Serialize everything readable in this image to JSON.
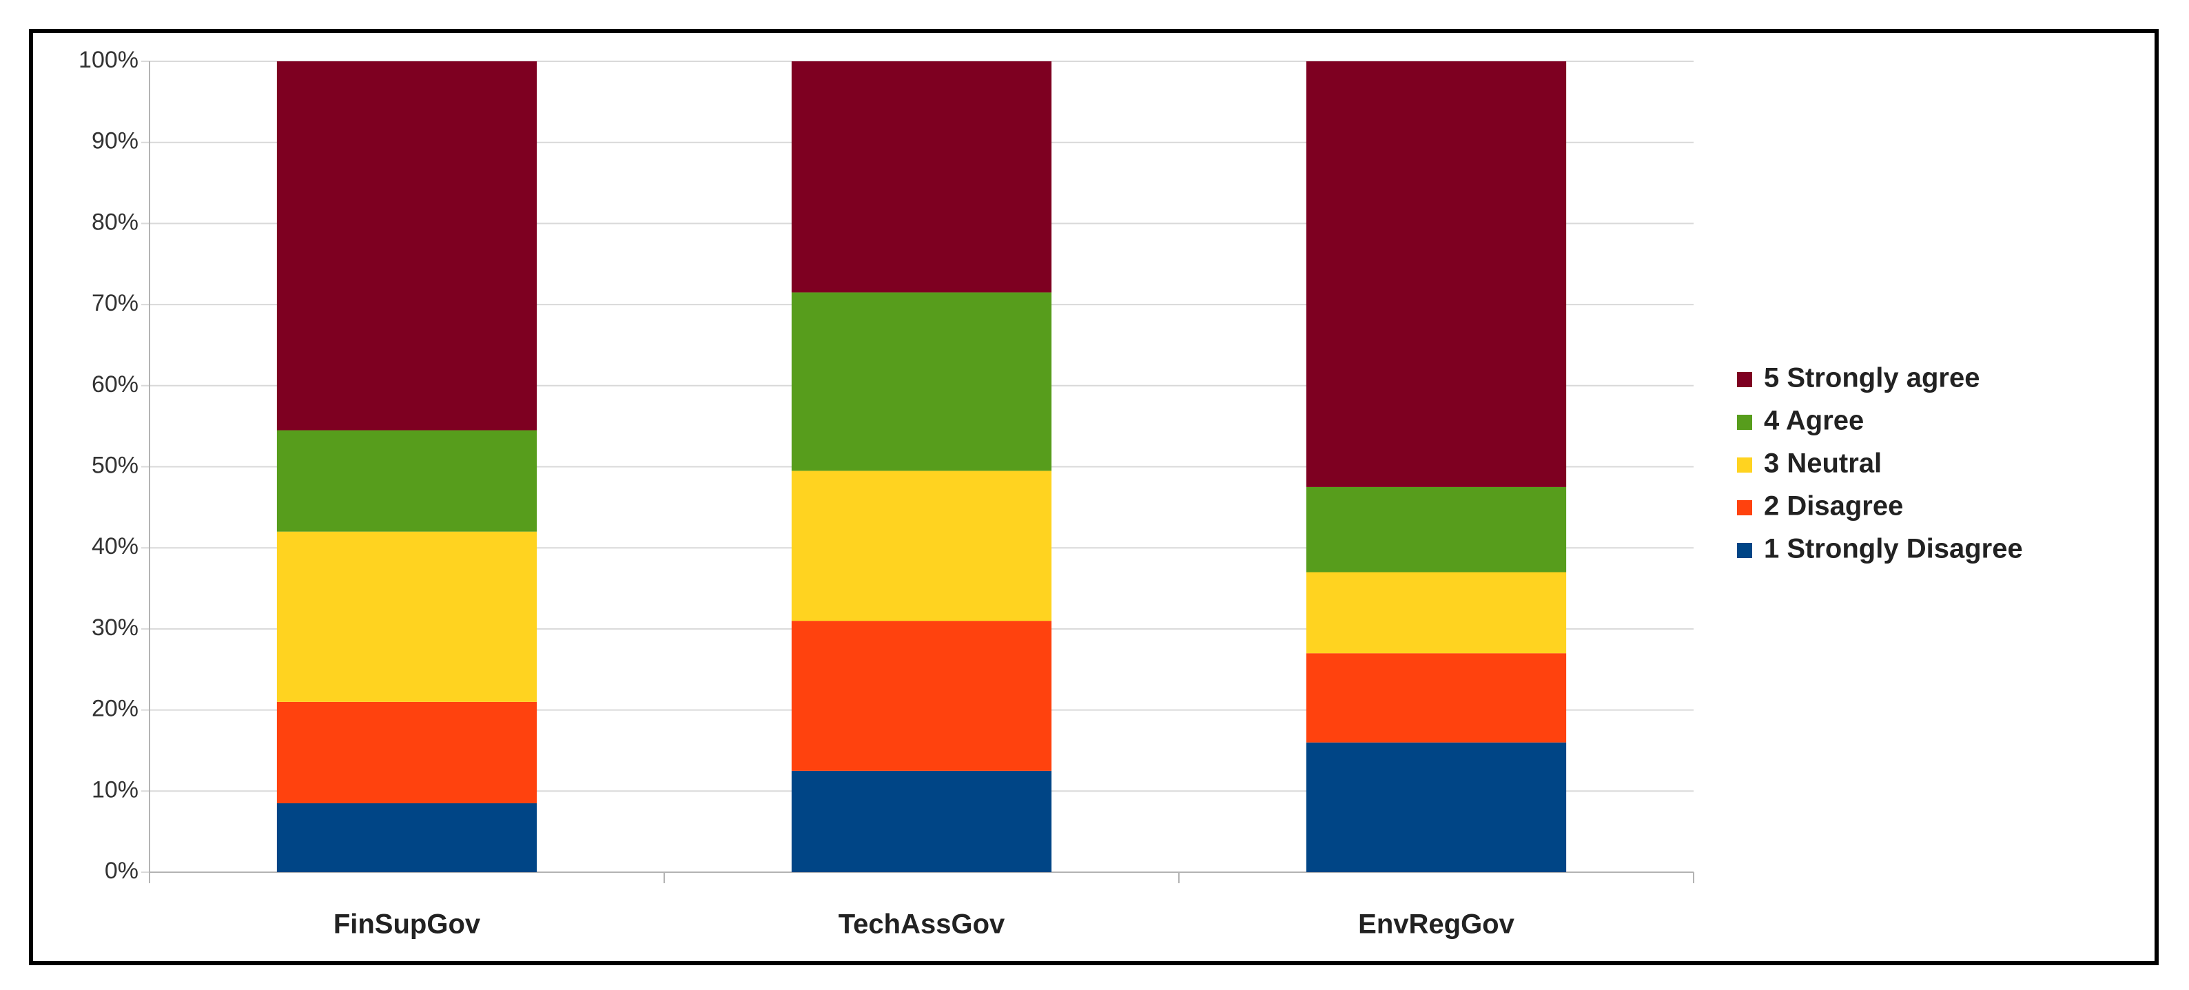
{
  "chart_data": {
    "type": "stacked_bar",
    "categories": [
      "FinSupGov",
      "TechAssGov",
      "EnvRegGov"
    ],
    "series": [
      {
        "name": "1 Strongly Disagree",
        "color": "#004586",
        "values": [
          8.5,
          12.5,
          16
        ]
      },
      {
        "name": "2 Disagree",
        "color": "#ff420e",
        "values": [
          12.5,
          18.5,
          11
        ]
      },
      {
        "name": "3 Neutral",
        "color": "#ffd320",
        "values": [
          21,
          18.5,
          10
        ]
      },
      {
        "name": "4 Agree",
        "color": "#579d1c",
        "values": [
          12.5,
          22,
          10.5
        ]
      },
      {
        "name": "5 Strongly agree",
        "color": "#7e0021",
        "values": [
          45.5,
          28.5,
          52.5
        ]
      }
    ],
    "ylim": [
      0,
      100
    ],
    "yticks": [
      {
        "value": 0,
        "label": "0%"
      },
      {
        "value": 10,
        "label": "10%"
      },
      {
        "value": 20,
        "label": "20%"
      },
      {
        "value": 30,
        "label": "30%"
      },
      {
        "value": 40,
        "label": "40%"
      },
      {
        "value": 50,
        "label": "50%"
      },
      {
        "value": 60,
        "label": "60%"
      },
      {
        "value": 70,
        "label": "70%"
      },
      {
        "value": 80,
        "label": "80%"
      },
      {
        "value": 90,
        "label": "90%"
      },
      {
        "value": 100,
        "label": "100%"
      }
    ],
    "grid": true,
    "legend": "right"
  }
}
